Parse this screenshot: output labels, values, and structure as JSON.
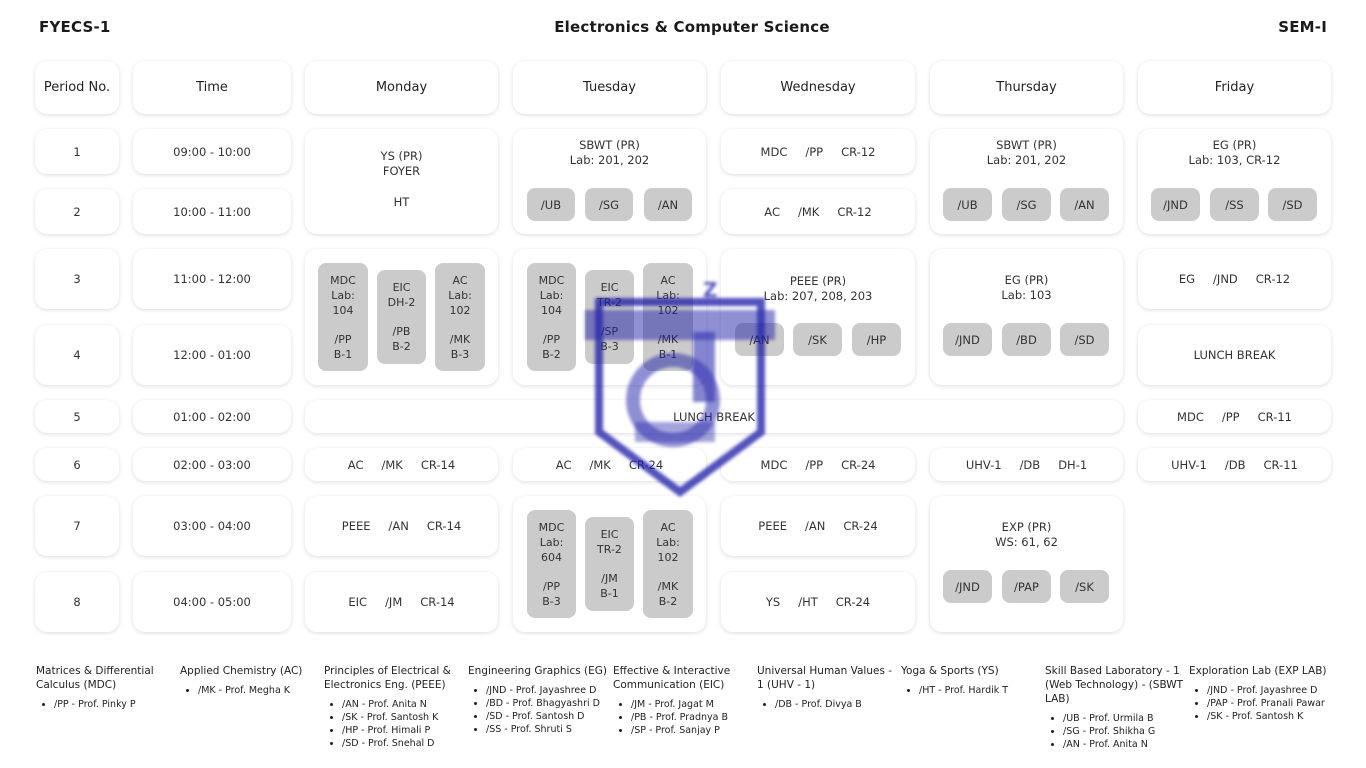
{
  "header": {
    "left": "FYECS-1",
    "center": "Electronics & Computer Science",
    "right": "SEM-I"
  },
  "columns": {
    "period": "Period No.",
    "time": "Time",
    "days": [
      "Monday",
      "Tuesday",
      "Wednesday",
      "Thursday",
      "Friday"
    ]
  },
  "periods": [
    {
      "no": "1",
      "time": "09:00 - 10:00"
    },
    {
      "no": "2",
      "time": "10:00 - 11:00"
    },
    {
      "no": "3",
      "time": "11:00 - 12:00"
    },
    {
      "no": "4",
      "time": "12:00 - 01:00"
    },
    {
      "no": "5",
      "time": "01:00 - 02:00"
    },
    {
      "no": "6",
      "time": "02:00 - 03:00"
    },
    {
      "no": "7",
      "time": "03:00 - 04:00"
    },
    {
      "no": "8",
      "time": "04:00 - 05:00"
    }
  ],
  "monday": {
    "p12": {
      "line1": "YS (PR)",
      "line2": "FOYER",
      "line3": "HT"
    },
    "p34": [
      {
        "subject": "MDC",
        "room": "Lab:\n104",
        "prof": "/PP",
        "batch": "B-1"
      },
      {
        "subject": "EIC",
        "room": "DH-2",
        "prof": "/PB",
        "batch": "B-2"
      },
      {
        "subject": "AC",
        "room": "Lab:\n102",
        "prof": "/MK",
        "batch": "B-3"
      }
    ],
    "p6": [
      "AC",
      "/MK",
      "CR-14"
    ],
    "p7": [
      "PEEE",
      "/AN",
      "CR-14"
    ],
    "p8": [
      "EIC",
      "/JM",
      "CR-14"
    ]
  },
  "lunch_break": "LUNCH BREAK",
  "tuesday": {
    "p12": {
      "title": "SBWT (PR)",
      "sub": "Lab: 201, 202",
      "pills": [
        "/UB",
        "/SG",
        "/AN"
      ]
    },
    "p34": [
      {
        "subject": "MDC",
        "room": "Lab:\n104",
        "prof": "/PP",
        "batch": "B-2"
      },
      {
        "subject": "EIC",
        "room": "TR-2",
        "prof": "/SP",
        "batch": "B-3"
      },
      {
        "subject": "AC",
        "room": "Lab:\n102",
        "prof": "/MK",
        "batch": "B-1"
      }
    ],
    "p6": [
      "AC",
      "/MK",
      "CR-24"
    ],
    "p78": [
      {
        "subject": "MDC",
        "room": "Lab:\n604",
        "prof": "/PP",
        "batch": "B-3"
      },
      {
        "subject": "EIC",
        "room": "TR-2",
        "prof": "/JM",
        "batch": "B-1"
      },
      {
        "subject": "AC",
        "room": "Lab:\n102",
        "prof": "/MK",
        "batch": "B-2"
      }
    ]
  },
  "wednesday": {
    "p1": [
      "MDC",
      "/PP",
      "CR-12"
    ],
    "p2": [
      "AC",
      "/MK",
      "CR-12"
    ],
    "p34": {
      "title": "PEEE (PR)",
      "sub": "Lab: 207, 208, 203",
      "pills": [
        "/AN",
        "/SK",
        "/HP"
      ]
    },
    "p6": [
      "MDC",
      "/PP",
      "CR-24"
    ],
    "p7": [
      "PEEE",
      "/AN",
      "CR-24"
    ],
    "p8": [
      "YS",
      "/HT",
      "CR-24"
    ]
  },
  "thursday": {
    "p12": {
      "title": "SBWT (PR)",
      "sub": "Lab: 201, 202",
      "pills": [
        "/UB",
        "/SG",
        "/AN"
      ]
    },
    "p34": {
      "title": "EG (PR)",
      "sub": "Lab: 103",
      "pills": [
        "/JND",
        "/BD",
        "/SD"
      ]
    },
    "p6": [
      "UHV-1",
      "/DB",
      "DH-1"
    ],
    "p78": {
      "title": "EXP (PR)",
      "sub": "WS: 61, 62",
      "pills": [
        "/JND",
        "/PAP",
        "/SK"
      ]
    }
  },
  "friday": {
    "p12": {
      "title": "EG (PR)",
      "sub": "Lab: 103, CR-12",
      "pills": [
        "/JND",
        "/SS",
        "/SD"
      ]
    },
    "p3": [
      "EG",
      "/JND",
      "CR-12"
    ],
    "p4": "LUNCH BREAK",
    "p5": [
      "MDC",
      "/PP",
      "CR-11"
    ],
    "p6": [
      "UHV-1",
      "/DB",
      "CR-11"
    ]
  },
  "legend": [
    {
      "title": "Matrices & Differential Calculus (MDC)",
      "items": [
        "/PP - Prof. Pinky P"
      ]
    },
    {
      "title": "Applied Chemistry (AC)",
      "items": [
        "/MK - Prof. Megha K"
      ]
    },
    {
      "title": "Principles of Electrical & Electronics Eng. (PEEE)",
      "items": [
        "/AN - Prof. Anita N",
        "/SK - Prof. Santosh K",
        "/HP - Prof. Himali P",
        "/SD - Prof. Snehal D"
      ]
    },
    {
      "title": "Engineering Graphics (EG)",
      "items": [
        "/JND - Prof. Jayashree D",
        "/BD - Prof. Bhagyashri D",
        "/SD - Prof. Santosh D",
        "/SS - Prof. Shruti S"
      ]
    },
    {
      "title": "Effective & Interactive Communication (EIC)",
      "items": [
        "/JM - Prof. Jagat M",
        "/PB - Prof. Pradnya B",
        "/SP - Prof. Sanjay P"
      ]
    },
    {
      "title": "Universal Human Values - 1 (UHV - 1)",
      "items": [
        "/DB - Prof. Divya B"
      ]
    },
    {
      "title": "Yoga & Sports (YS)",
      "items": [
        "/HT - Prof. Hardik T"
      ]
    },
    {
      "title": "Skill Based Laboratory - 1 (Web Technology) - (SBWT LAB)",
      "items": [
        "/UB - Prof. Urmila B",
        "/SG - Prof. Shikha G",
        "/AN - Prof. Anita N"
      ]
    },
    {
      "title": "Exploration Lab (EXP LAB)",
      "items": [
        "/JND - Prof. Jayashree D",
        "/PAP - Prof. Pranali Pawar",
        "/SK - Prof. Santosh K"
      ]
    }
  ],
  "colors": {
    "pill": "#cbcbcb",
    "watermark": "#1d1da8"
  },
  "watermark_icon": "college-logo-watermark"
}
